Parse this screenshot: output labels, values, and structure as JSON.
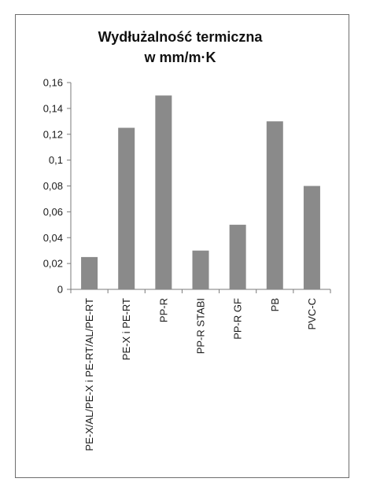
{
  "chart_data": {
    "type": "bar",
    "title": "Wydłużalność termiczna",
    "subtitle": "w mm/m·K",
    "xlabel": "",
    "ylabel": "",
    "categories": [
      "PE-X/AL/PE-X i PE-RT/AL/PE-RT",
      "PE-X i PE-RT",
      "PP-R",
      "PP-R STABI",
      "PP-R GF",
      "PB",
      "PVC-C"
    ],
    "values": [
      0.025,
      0.125,
      0.15,
      0.03,
      0.05,
      0.13,
      0.08
    ],
    "ylim": [
      0,
      0.16
    ],
    "yticks": [
      "0",
      "0,02",
      "0,04",
      "0,06",
      "0,08",
      "0,1",
      "0,12",
      "0,14",
      "0,16"
    ],
    "grid": false,
    "legend": "none",
    "colors": {
      "bar": "#8a8a8a",
      "axis": "#7a7a7a",
      "frame": "#6e6e6e"
    }
  }
}
